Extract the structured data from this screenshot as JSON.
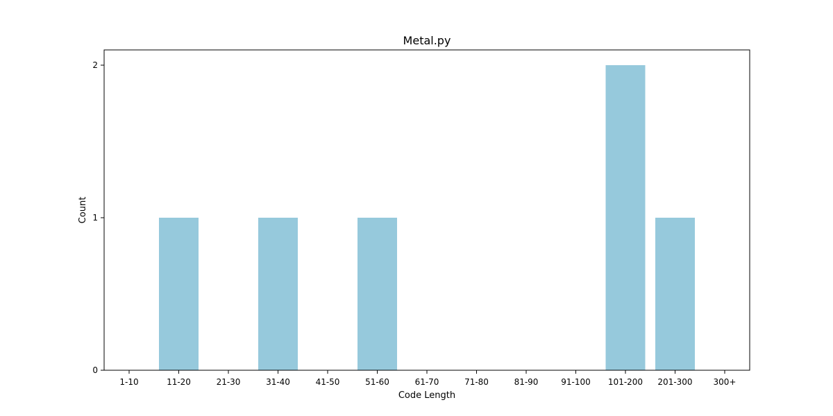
{
  "chart_data": {
    "type": "bar",
    "title": "Metal.py",
    "xlabel": "Code Length",
    "ylabel": "Count",
    "categories": [
      "1-10",
      "11-20",
      "21-30",
      "31-40",
      "41-50",
      "51-60",
      "61-70",
      "71-80",
      "81-90",
      "91-100",
      "101-200",
      "201-300",
      "300+"
    ],
    "values": [
      0,
      1,
      0,
      1,
      0,
      1,
      0,
      0,
      0,
      0,
      2,
      1,
      0
    ],
    "ylim": [
      0,
      2.1
    ],
    "yticks": [
      0,
      1,
      2
    ],
    "grid": false,
    "bar_color": "#96c9dc"
  }
}
